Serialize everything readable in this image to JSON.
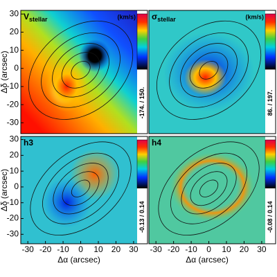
{
  "chart_data": [
    {
      "type": "map",
      "title": {
        "symbol": "V",
        "subscript": "stellar"
      },
      "unit": "(km/s)",
      "colorbar_label": "-174. / 150.",
      "xlim": [
        -34,
        32
      ],
      "ylim": [
        -36,
        32
      ],
      "yticks": [
        -30,
        -20,
        -10,
        0,
        10,
        20,
        30
      ],
      "ylabel": "Δδ (arcsec)"
    },
    {
      "type": "map",
      "title": {
        "symbol": "σ",
        "subscript": "stellar"
      },
      "unit": "(km/s)",
      "colorbar_label": "86. / 197.",
      "xlim": [
        -34,
        32
      ],
      "ylim": [
        -36,
        32
      ]
    },
    {
      "type": "map",
      "title": {
        "symbol": "h3"
      },
      "colorbar_label": "-0.13 / 0.14",
      "xlim": [
        -34,
        32
      ],
      "ylim": [
        -36,
        32
      ],
      "xticks": [
        -30,
        -20,
        -10,
        0,
        10,
        20,
        30
      ],
      "yticks": [
        -30,
        -20,
        -10,
        0,
        10,
        20,
        30
      ],
      "xlabel": "Δα (arcsec)",
      "ylabel": "Δδ (arcsec)"
    },
    {
      "type": "map",
      "title": {
        "symbol": "h4"
      },
      "colorbar_label": "-0.08 / 0.14",
      "xlim": [
        -34,
        32
      ],
      "ylim": [
        -36,
        32
      ],
      "xticks": [
        -30,
        -20,
        -10,
        0,
        10,
        20,
        30
      ],
      "xlabel": "Δα (arcsec)"
    }
  ]
}
